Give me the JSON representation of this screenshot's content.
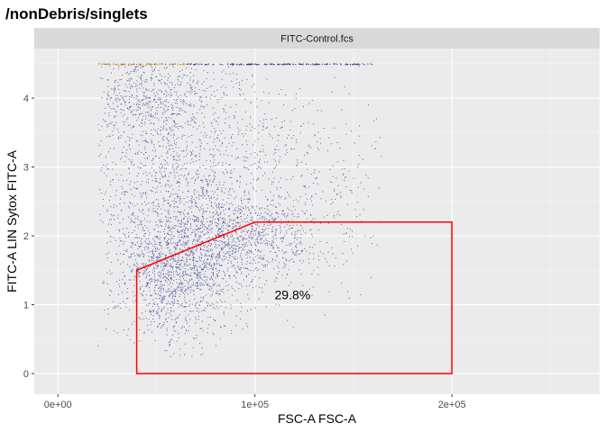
{
  "chart_data": {
    "type": "scatter",
    "title": "/nonDebris/singlets",
    "facet_label": "FITC-Control.fcs",
    "xlabel": "FSC-A FSC-A",
    "ylabel": "FITC-A LIN Sytox FITC-A",
    "xlim": [
      -12000,
      275000
    ],
    "ylim": [
      -0.3,
      4.72
    ],
    "x_ticks": [
      {
        "value": 0,
        "label": "0e+00"
      },
      {
        "value": 100000,
        "label": "1e+05"
      },
      {
        "value": 200000,
        "label": "2e+05"
      }
    ],
    "y_ticks": [
      {
        "value": 0,
        "label": "0"
      },
      {
        "value": 1,
        "label": "1"
      },
      {
        "value": 2,
        "label": "2"
      },
      {
        "value": 3,
        "label": "3"
      },
      {
        "value": 4,
        "label": "4"
      }
    ],
    "grid": true,
    "point_color": "#2b2b8f",
    "gate_color": "#ff0000",
    "gate": {
      "vertices": [
        [
          40000,
          0
        ],
        [
          40000,
          1.5
        ],
        [
          100000,
          2.2
        ],
        [
          200000,
          2.2
        ],
        [
          200000,
          0
        ]
      ],
      "label": "29.8%",
      "label_position": [
        110000,
        1.08
      ]
    },
    "clusters": [
      {
        "center": [
          60000,
          1.5
        ],
        "spread": [
          15000,
          0.55
        ],
        "count": 1400
      },
      {
        "center": [
          90000,
          1.95
        ],
        "spread": [
          22000,
          0.3
        ],
        "count": 900
      },
      {
        "center": [
          60000,
          3.1
        ],
        "spread": [
          28000,
          0.8
        ],
        "count": 1300
      },
      {
        "center": [
          45000,
          4.1
        ],
        "spread": [
          15000,
          0.35
        ],
        "count": 500
      },
      {
        "center": [
          120000,
          2.6
        ],
        "spread": [
          30000,
          0.7
        ],
        "count": 450
      }
    ],
    "saturation_band": {
      "x_range": [
        20000,
        160000
      ],
      "y": 4.5
    }
  }
}
